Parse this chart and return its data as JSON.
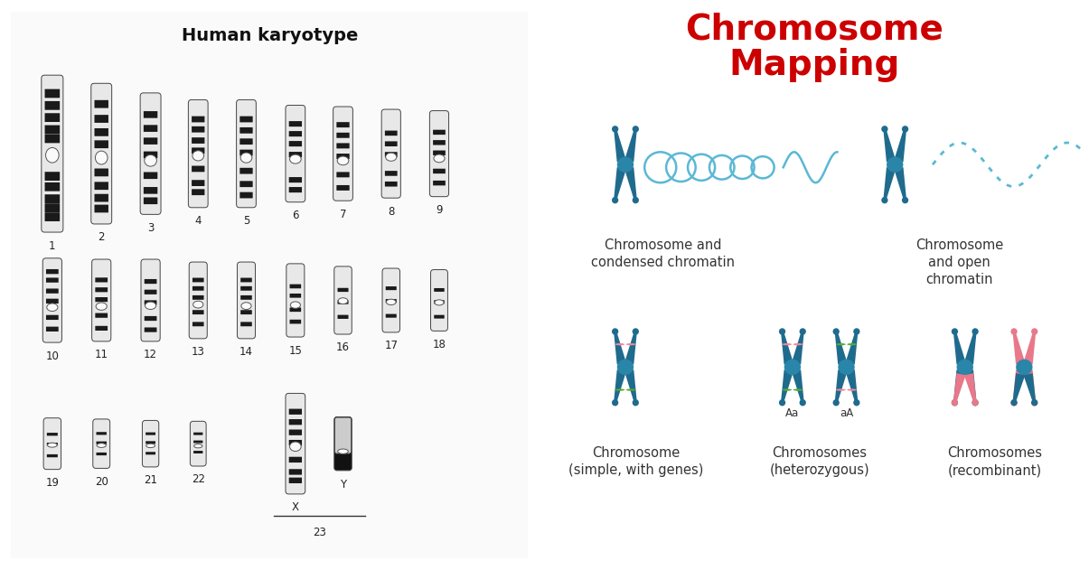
{
  "left_title": "Human karyotype",
  "right_title": "Chromosome\nMapping",
  "right_title_color": "#CC0000",
  "background_color": "#ffffff",
  "blue_chr": "#1f6b8e",
  "pink_chr": "#e8788a",
  "green_band": "#55aa33",
  "pink_band": "#ee8899",
  "light_blue": "#5bb8d4",
  "labels_row1": [
    "1",
    "2",
    "3",
    "4",
    "5",
    "6",
    "7",
    "8",
    "9"
  ],
  "labels_row2": [
    "10",
    "11",
    "12",
    "13",
    "14",
    "15",
    "16",
    "17",
    "18"
  ],
  "caption1": "Chromosome and\ncondensed chromatin",
  "caption2": "Chromosome\nand open\nchromatin",
  "caption3": "Chromosome\n(simple, with genes)",
  "caption4": "Chromosomes\n(heterozygous)",
  "caption5": "Chromosomes\n(recombinant)",
  "label_Aa": "Aa",
  "label_aA": "aA",
  "chr_body_color": "#f0f0f0",
  "chr_band_dark": "#222222",
  "chr_band_light": "#cccccc",
  "chr_outline": "#333333"
}
